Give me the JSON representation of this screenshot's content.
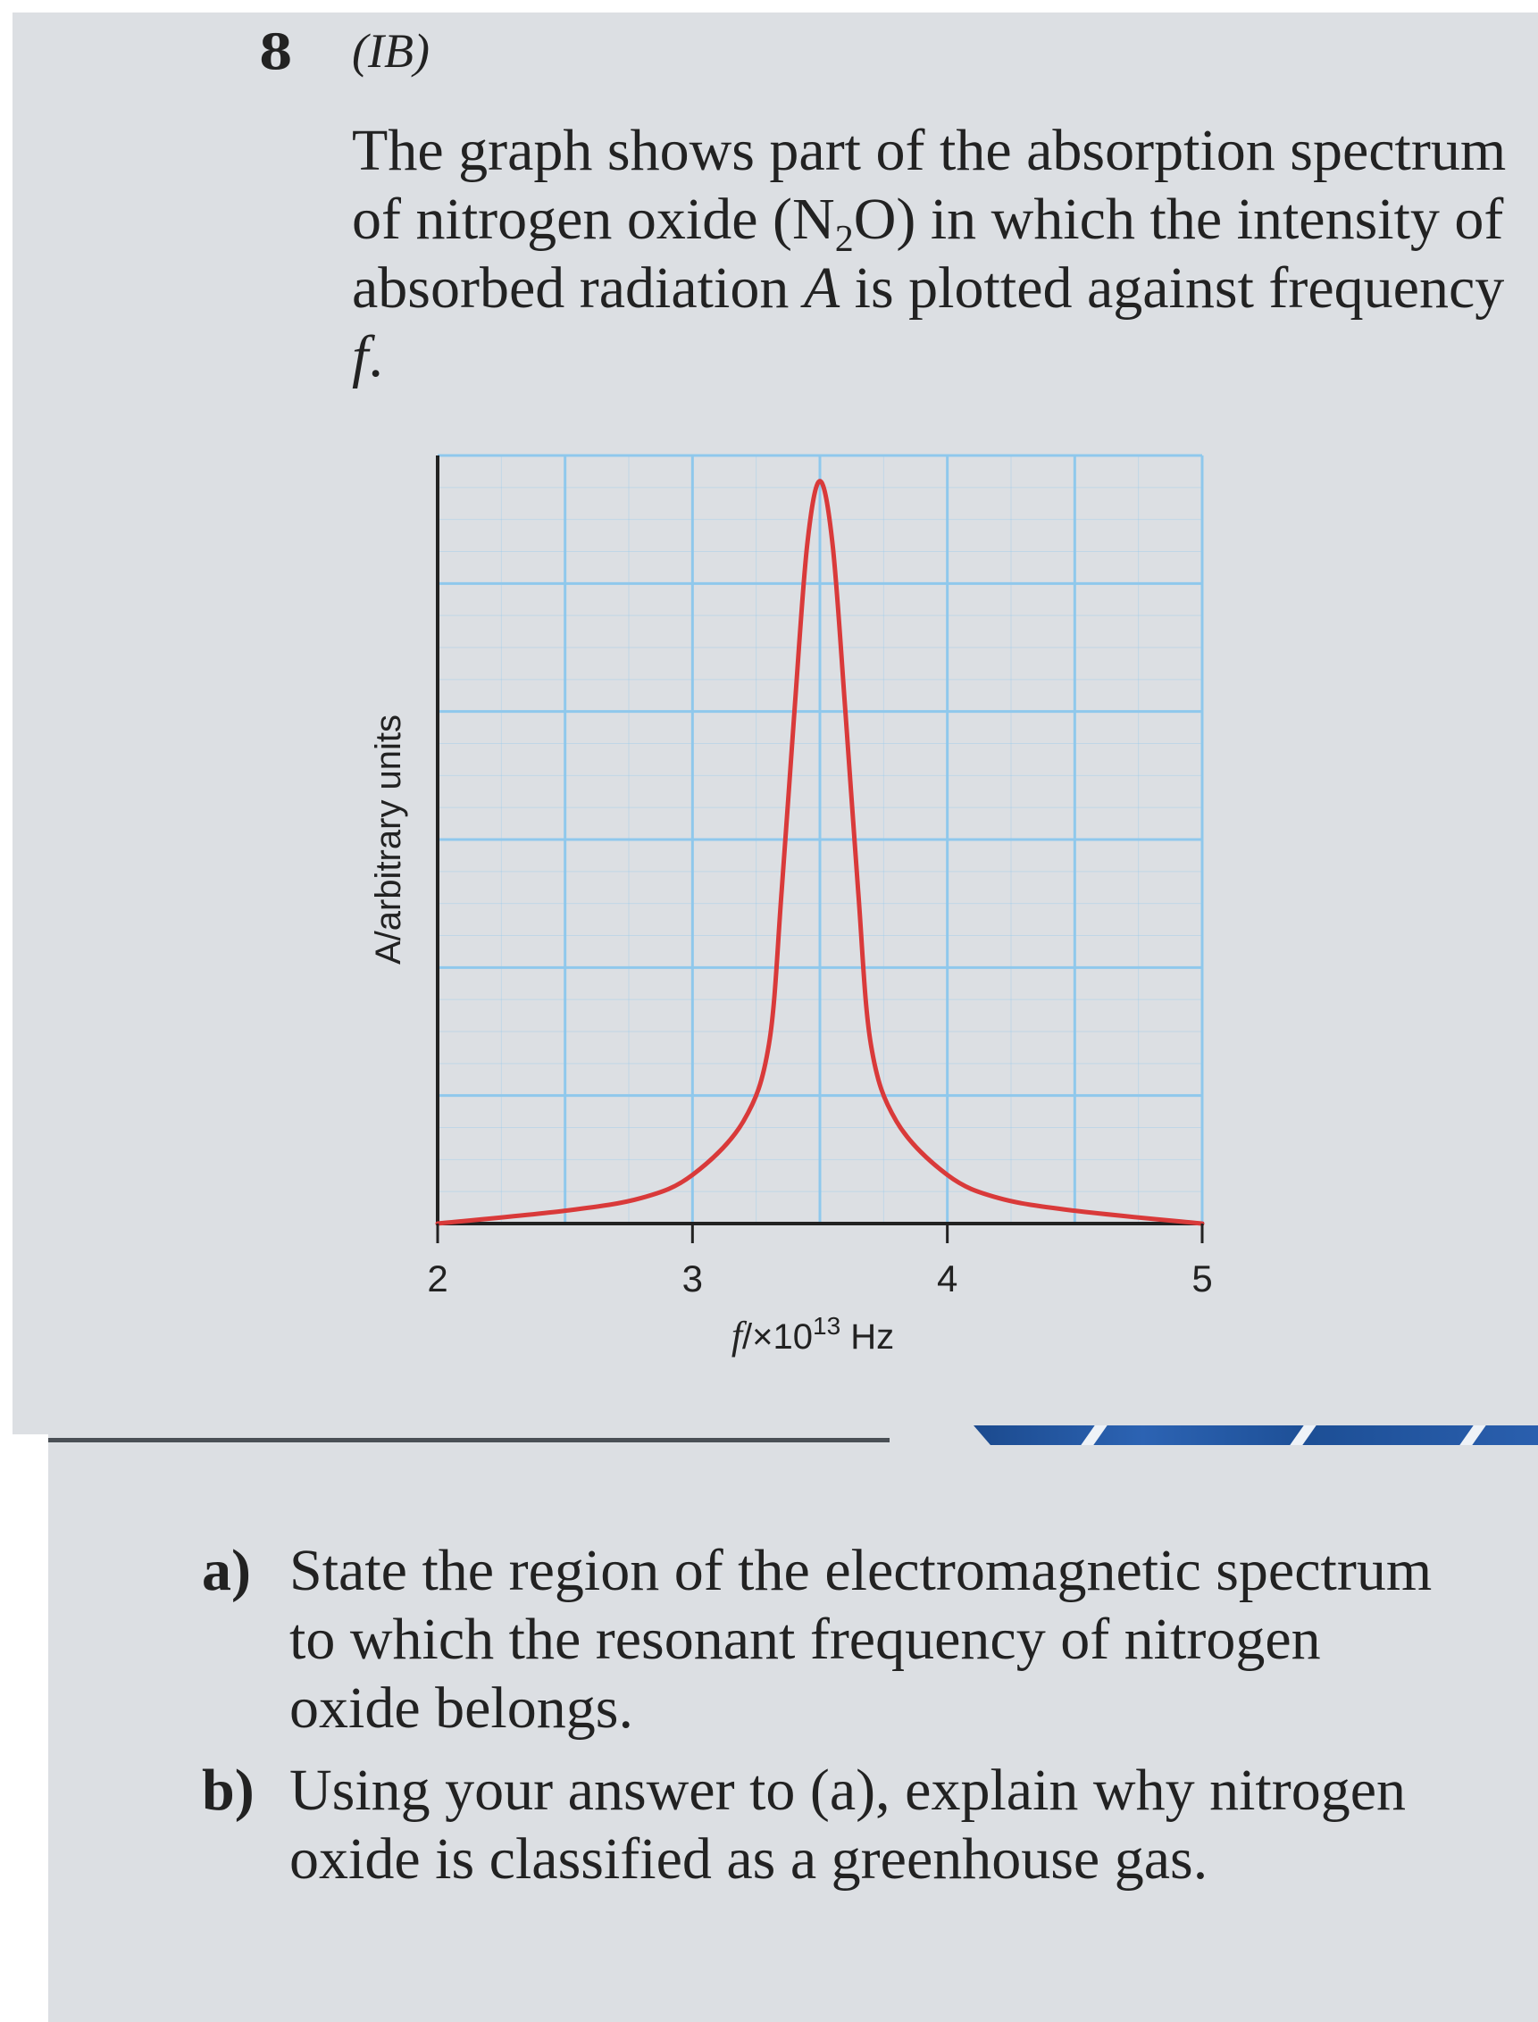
{
  "question": {
    "number": "8",
    "source": "(IB)",
    "intro": {
      "part1": "The graph shows part of the absorption spectrum of nitrogen oxide (N",
      "sub": "2",
      "part2": "O) in which the intensity of absorbed radiation ",
      "var_a": "A",
      "part3": " is plotted against frequency ",
      "var_f": "f",
      "part4": "."
    },
    "parts": [
      {
        "label": "a)",
        "text": "State the region of the electromagnetic spectrum to which the resonant frequency of nitrogen oxide belongs."
      },
      {
        "label": "b)",
        "text": "Using your answer to (a), explain why nitrogen oxide is classified as a greenhouse gas."
      }
    ]
  },
  "chart_data": {
    "type": "line",
    "title": "",
    "xlabel": {
      "var": "f",
      "prefix": "/×10",
      "exp": "13",
      "unit": " Hz"
    },
    "ylabel": "A/arbitrary units",
    "xlim": [
      2,
      5
    ],
    "ylim": [
      0,
      6
    ],
    "x_ticks": [
      "2",
      "3",
      "4",
      "5"
    ],
    "grid": true,
    "colors": {
      "line": "#d93a3a",
      "grid": "#8fc8ec",
      "axis": "#222222"
    },
    "series": [
      {
        "x": [
          2.0,
          2.5,
          2.8,
          3.0,
          3.2,
          3.3,
          3.35,
          3.4,
          3.45,
          3.5,
          3.55,
          3.6,
          3.65,
          3.7,
          3.8,
          4.0,
          4.2,
          4.5,
          5.0
        ],
        "values": [
          0.0,
          0.1,
          0.2,
          0.38,
          0.8,
          1.4,
          2.6,
          4.0,
          5.3,
          5.8,
          5.3,
          4.0,
          2.6,
          1.4,
          0.8,
          0.38,
          0.2,
          0.1,
          0.0
        ]
      }
    ]
  }
}
